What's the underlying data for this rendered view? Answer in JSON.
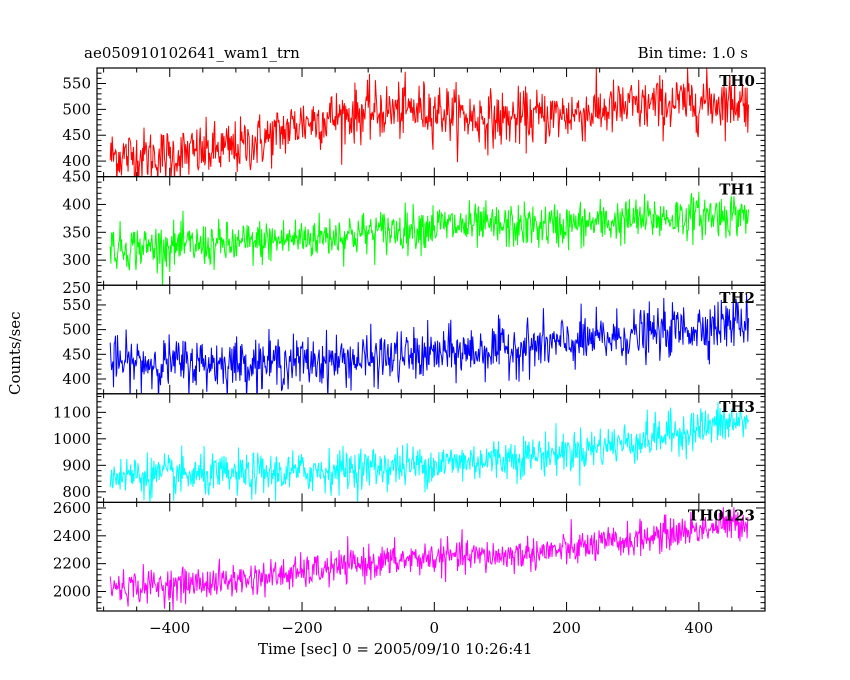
{
  "header": {
    "title_left": "ae050910102641_wam1_trn",
    "title_right": "Bin time: 1.0 s"
  },
  "colors": {
    "TH0": "#ff0000",
    "TH1": "#00ff00",
    "TH2": "#0000ff",
    "TH3": "#00ffff",
    "TH0123": "#ff00ff"
  },
  "chart_data": {
    "type": "line",
    "title": "ae050910102641_wam1_trn",
    "subtitle": "Bin time: 1.0 s",
    "xlabel": "Time [sec] 0 = 2005/09/10 10:26:41",
    "ylabel": "Counts/sec",
    "xlim": [
      -510,
      500
    ],
    "x_ticks": [
      -400,
      -200,
      0,
      200,
      400
    ],
    "x_tick_labels": [
      "−400",
      "−200",
      "0",
      "200",
      "400"
    ],
    "x_range_data": [
      -490,
      475
    ],
    "bin_time_s": 1.0,
    "grid": false,
    "panels": [
      {
        "name": "TH0",
        "ylim": [
          370,
          580
        ],
        "y_ticks": [
          400,
          450,
          500,
          550
        ],
        "trend_x": [
          -490,
          -400,
          -300,
          -250,
          -200,
          -100,
          0,
          50,
          100,
          200,
          300,
          400,
          475
        ],
        "trend_y": [
          410,
          410,
          425,
          445,
          475,
          495,
          500,
          485,
          480,
          490,
          505,
          515,
          515
        ],
        "noise_sd": 27
      },
      {
        "name": "TH1",
        "ylim": [
          255,
          450
        ],
        "y_ticks": [
          250,
          300,
          350,
          400,
          450
        ],
        "trend_x": [
          -490,
          -400,
          -300,
          -200,
          -100,
          0,
          100,
          200,
          300,
          400,
          475
        ],
        "trend_y": [
          322,
          325,
          328,
          340,
          348,
          362,
          360,
          362,
          372,
          380,
          382
        ],
        "noise_sd": 20
      },
      {
        "name": "TH2",
        "ylim": [
          370,
          590
        ],
        "y_ticks": [
          400,
          450,
          500,
          550
        ],
        "trend_x": [
          -490,
          -400,
          -300,
          -200,
          -100,
          0,
          100,
          200,
          300,
          400,
          475
        ],
        "trend_y": [
          432,
          432,
          432,
          435,
          440,
          450,
          460,
          472,
          488,
          505,
          518
        ],
        "noise_sd": 26
      },
      {
        "name": "TH3",
        "ylim": [
          760,
          1170
        ],
        "y_ticks": [
          800,
          900,
          1000,
          1100
        ],
        "trend_x": [
          -490,
          -400,
          -300,
          -200,
          -100,
          0,
          100,
          200,
          300,
          400,
          475
        ],
        "trend_y": [
          865,
          860,
          862,
          875,
          890,
          905,
          925,
          950,
          990,
          1040,
          1070
        ],
        "noise_sd": 40
      },
      {
        "name": "TH0123",
        "ylim": [
          1860,
          2640
        ],
        "y_ticks": [
          2000,
          2200,
          2400,
          2600
        ],
        "trend_x": [
          -490,
          -400,
          -300,
          -200,
          -100,
          0,
          100,
          200,
          300,
          400,
          475
        ],
        "trend_y": [
          2030,
          2045,
          2080,
          2135,
          2205,
          2245,
          2255,
          2300,
          2370,
          2450,
          2500
        ],
        "noise_sd": 60
      }
    ]
  }
}
